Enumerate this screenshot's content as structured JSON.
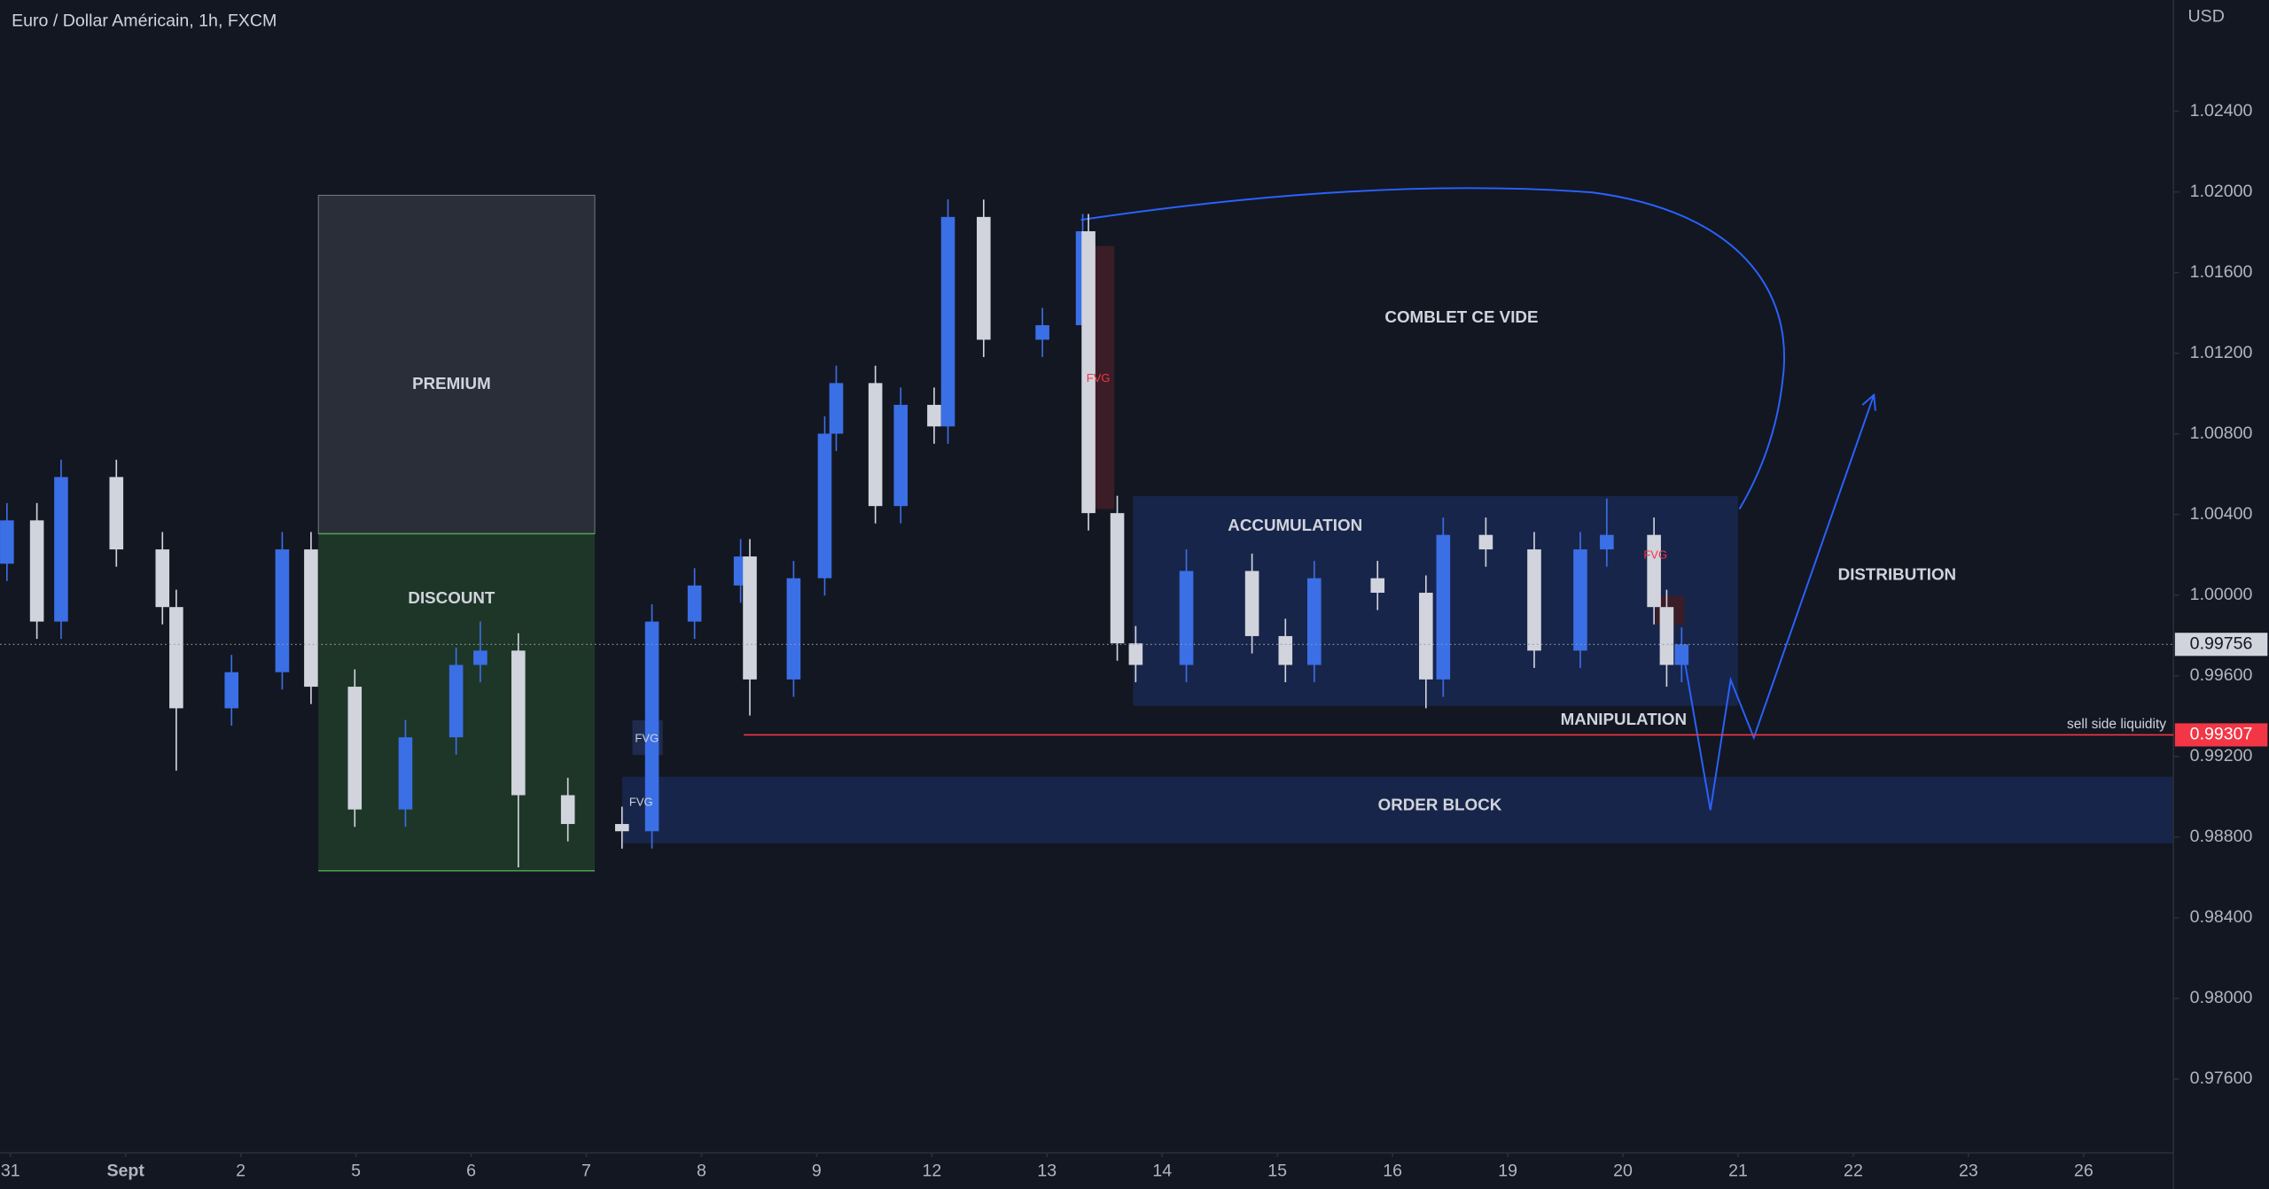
{
  "chart_data": {
    "type": "candlestick",
    "title": "Euro / Dollar Américain, 1h, FXCM",
    "currency": "USD",
    "x": [
      -0.03,
      0.23,
      0.44,
      0.92,
      1.32,
      1.44,
      1.92,
      2.36,
      2.61,
      2.99,
      3.43,
      3.87,
      4.08,
      4.41,
      4.84,
      5.31,
      5.57,
      5.94,
      6.34,
      6.42,
      6.8,
      7.07,
      7.17,
      7.51,
      7.73,
      8.02,
      8.14,
      8.45,
      8.96,
      9.31,
      9.36,
      9.61,
      9.77,
      10.21,
      10.78,
      11.07,
      11.32,
      11.87,
      12.29,
      12.44,
      12.81,
      13.23,
      13.63,
      13.86,
      14.27,
      14.38,
      14.51
    ],
    "open": [
      1.00156,
      1.00371,
      0.99869,
      1.00586,
      1.00227,
      0.99941,
      0.99439,
      0.99618,
      1.00227,
      0.99546,
      0.98937,
      0.99295,
      0.99654,
      0.99725,
      0.99008,
      0.98865,
      0.98829,
      0.99869,
      1.00048,
      1.00192,
      0.99582,
      1.00084,
      1.00801,
      1.01052,
      1.00442,
      1.00944,
      1.00837,
      1.01876,
      1.01267,
      1.01339,
      1.01805,
      1.00407,
      0.99761,
      0.99654,
      1.0012,
      0.99797,
      0.99654,
      1.00084,
      1.00012,
      0.99582,
      1.00299,
      1.00227,
      0.99725,
      1.00227,
      1.00299,
      0.99941,
      0.99654
    ],
    "high": [
      1.00457,
      1.00457,
      1.00672,
      1.00672,
      1.00313,
      1.00027,
      0.99704,
      1.00313,
      1.00313,
      0.99632,
      0.99381,
      0.9974,
      0.99869,
      0.99811,
      0.99094,
      0.98951,
      0.99955,
      1.00134,
      1.00278,
      1.00278,
      1.0017,
      1.00887,
      1.01138,
      1.01138,
      1.0103,
      1.0103,
      1.01963,
      1.01962,
      1.01425,
      1.01891,
      1.01891,
      1.00493,
      0.99847,
      1.00227,
      1.00206,
      0.99883,
      1.0017,
      1.0017,
      1.00098,
      1.00385,
      1.00385,
      1.00313,
      1.00313,
      1.00479,
      1.00385,
      1.00027,
      0.9984
    ],
    "low": [
      1.0007,
      0.99783,
      0.99783,
      1.00141,
      0.99855,
      0.9913,
      0.99353,
      0.99532,
      0.9946,
      0.98851,
      0.98851,
      0.99209,
      0.99568,
      0.9865,
      0.98779,
      0.98743,
      0.98743,
      0.99783,
      0.99962,
      0.99403,
      0.99496,
      0.99998,
      1.00715,
      1.00356,
      1.00356,
      1.00751,
      1.00751,
      1.01181,
      1.01181,
      1.01253,
      1.00321,
      0.99675,
      0.99568,
      0.99568,
      0.99711,
      0.99568,
      0.99568,
      0.99926,
      0.99439,
      0.99496,
      1.00141,
      0.99639,
      0.99639,
      1.00141,
      0.99855,
      0.99546,
      0.99568
    ],
    "close": [
      1.00371,
      0.99869,
      1.00586,
      1.00227,
      0.99941,
      0.99439,
      0.99618,
      1.00227,
      0.99546,
      0.98937,
      0.99295,
      0.99654,
      0.99725,
      0.99008,
      0.98865,
      0.98829,
      0.99869,
      1.00048,
      1.00192,
      0.99582,
      1.00084,
      1.00801,
      1.01052,
      1.00442,
      1.00944,
      1.00837,
      1.01876,
      1.01267,
      1.01339,
      1.01805,
      1.00407,
      0.99761,
      0.99654,
      1.0012,
      0.99797,
      0.99654,
      1.00084,
      1.00012,
      0.99582,
      1.00299,
      1.00227,
      0.99725,
      1.00227,
      1.00299,
      0.99941,
      0.99654,
      0.99756
    ],
    "up_color": "#3b6fe6",
    "down_color": "#d1d4dc",
    "xlim": [
      -0.09,
      18.78
    ],
    "xticks": [
      {
        "value": 0,
        "label": "31"
      },
      {
        "value": 1,
        "label": "Sept"
      },
      {
        "value": 2,
        "label": "2"
      },
      {
        "value": 3,
        "label": "5"
      },
      {
        "value": 4,
        "label": "6"
      },
      {
        "value": 5,
        "label": "7"
      },
      {
        "value": 6,
        "label": "8"
      },
      {
        "value": 7,
        "label": "9"
      },
      {
        "value": 8,
        "label": "12"
      },
      {
        "value": 9,
        "label": "13"
      },
      {
        "value": 10,
        "label": "14"
      },
      {
        "value": 11,
        "label": "15"
      },
      {
        "value": 12,
        "label": "16"
      },
      {
        "value": 13,
        "label": "19"
      },
      {
        "value": 14,
        "label": "20"
      },
      {
        "value": 15,
        "label": "21"
      },
      {
        "value": 16,
        "label": "22"
      },
      {
        "value": 17,
        "label": "23"
      },
      {
        "value": 18,
        "label": "26"
      }
    ],
    "ylim": [
      0.97234,
      1.02952
    ],
    "yticks": [
      {
        "value": 0.976,
        "label": "0.97600"
      },
      {
        "value": 0.98,
        "label": "0.98000"
      },
      {
        "value": 0.984,
        "label": "0.98400"
      },
      {
        "value": 0.988,
        "label": "0.98800"
      },
      {
        "value": 0.992,
        "label": "0.99200"
      },
      {
        "value": 0.996,
        "label": "0.99600"
      },
      {
        "value": 1.0,
        "label": "1.00000"
      },
      {
        "value": 1.004,
        "label": "1.00400"
      },
      {
        "value": 1.008,
        "label": "1.00800"
      },
      {
        "value": 1.012,
        "label": "1.01200"
      },
      {
        "value": 1.016,
        "label": "1.01600"
      },
      {
        "value": 1.02,
        "label": "1.02000"
      },
      {
        "value": 1.024,
        "label": "1.02400"
      }
    ],
    "last_price": {
      "value": 0.99756,
      "label": "0.99756"
    },
    "level": {
      "name": "sell side liquidity",
      "value": 0.99307,
      "label": "0.99307",
      "color": "#f23645"
    },
    "annotations": [
      "PREMIUM",
      "DISCOUNT",
      "COMBLET CE VIDE",
      "ACCUMULATION",
      "DISTRIBUTION",
      "MANIPULATION",
      "ORDER BLOCK",
      "FVG",
      "FVG",
      "FVG",
      "FVG"
    ]
  }
}
